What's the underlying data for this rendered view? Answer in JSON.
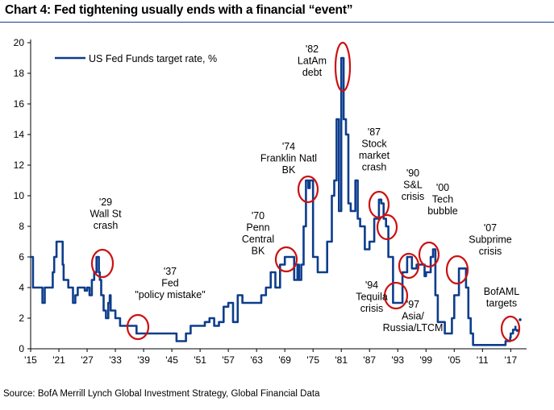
{
  "title": "Chart 4: Fed tightening usually ends with a financial “event”",
  "source": "Source: BofA Merrill Lynch Global Investment Strategy, Global Financial Data",
  "chart_data": {
    "type": "line",
    "title": "Chart 4: Fed tightening usually ends with a financial “event”",
    "xlabel": "",
    "ylabel": "",
    "xlim": [
      1915,
      2019
    ],
    "ylim": [
      0,
      20
    ],
    "yticks": [
      0,
      2,
      4,
      6,
      8,
      10,
      12,
      14,
      16,
      18,
      20
    ],
    "xtick_labels": [
      "'15",
      "'21",
      "'27",
      "'33",
      "'39",
      "'45",
      "'51",
      "'57",
      "'63",
      "'69",
      "'75",
      "'81",
      "'87",
      "'93",
      "'99",
      "'05",
      "'11",
      "'17"
    ],
    "grid": false,
    "legend": "top-left",
    "colors": {
      "line": "#0d3d8c",
      "circle": "#cc1111"
    },
    "series": [
      {
        "name": "US Fed Funds target rate, %",
        "x": [
          1915,
          1915.5,
          1916,
          1917,
          1917.5,
          1918,
          1919,
          1919.7,
          1920,
          1920.5,
          1921.2,
          1921.8,
          1922,
          1923,
          1924,
          1924.5,
          1925,
          1926,
          1926.5,
          1927,
          1927.5,
          1928,
          1928.5,
          1929,
          1929.5,
          1929.7,
          1930,
          1930.5,
          1931,
          1931.5,
          1931.8,
          1932,
          1932.5,
          1933,
          1933.5,
          1934,
          1935,
          1937,
          1937.5,
          1938,
          1940,
          1942,
          1945,
          1946,
          1947,
          1948,
          1949,
          1950,
          1952,
          1953,
          1954,
          1955,
          1956,
          1957,
          1958,
          1959,
          1960,
          1961,
          1963,
          1964,
          1965,
          1966,
          1967,
          1968,
          1969,
          1970,
          1971,
          1971.7,
          1972,
          1972.5,
          1973,
          1973.5,
          1974,
          1974.3,
          1975,
          1976,
          1977,
          1978,
          1979,
          1979.5,
          1980,
          1980.5,
          1981,
          1981.5,
          1982,
          1982.5,
          1983,
          1984,
          1984.5,
          1985,
          1986,
          1987,
          1988,
          1989,
          1989.5,
          1990,
          1990.5,
          1991,
          1992,
          1993,
          1994,
          1995,
          1996,
          1997,
          1998,
          1998.7,
          1999,
          2000,
          2000.5,
          2001,
          2001.5,
          2002,
          2003,
          2004,
          2004.5,
          2005,
          2006,
          2007,
          2007.5,
          2008,
          2008.5,
          2009,
          2012,
          2015,
          2015.9,
          2016,
          2016.9,
          2017,
          2017.5,
          2018
        ],
        "y": [
          6.0,
          4.0,
          4.0,
          4.0,
          3.0,
          4.0,
          4.0,
          5.0,
          6.0,
          7.0,
          7.0,
          5.5,
          4.5,
          4.0,
          3.0,
          3.5,
          4.0,
          4.0,
          3.8,
          4.0,
          3.5,
          4.5,
          5.0,
          6.0,
          5.0,
          4.5,
          3.5,
          2.5,
          2.0,
          3.0,
          3.5,
          2.5,
          2.5,
          2.0,
          2.0,
          1.5,
          1.5,
          1.5,
          1.0,
          1.0,
          1.0,
          1.0,
          1.0,
          0.5,
          0.5,
          1.0,
          1.5,
          1.5,
          1.75,
          2.0,
          1.5,
          1.75,
          2.75,
          3.0,
          1.75,
          3.5,
          3.0,
          3.0,
          3.0,
          3.5,
          4.0,
          5.0,
          4.0,
          5.5,
          6.0,
          6.0,
          4.5,
          5.5,
          4.5,
          5.5,
          8.0,
          11.0,
          10.5,
          11.0,
          6.0,
          5.0,
          5.0,
          7.0,
          10.0,
          11.0,
          15.0,
          9.0,
          19.0,
          15.0,
          14.0,
          9.5,
          9.0,
          11.0,
          8.5,
          8.0,
          6.5,
          7.0,
          8.5,
          9.75,
          9.5,
          8.5,
          8.0,
          6.0,
          3.0,
          3.0,
          5.0,
          6.0,
          5.25,
          5.5,
          5.5,
          4.75,
          5.0,
          6.0,
          6.5,
          3.5,
          1.75,
          1.75,
          1.0,
          1.0,
          2.0,
          3.5,
          5.25,
          5.25,
          4.0,
          2.0,
          1.0,
          0.25,
          0.25,
          0.25,
          0.5,
          0.5,
          0.75,
          1.0,
          1.25,
          1.5
        ]
      },
      {
        "name": "BofAML targets",
        "x": [
          2018.4,
          2019
        ],
        "y": [
          1.2,
          1.9
        ]
      }
    ],
    "annotations": [
      {
        "text": [
          "'29",
          "Wall St",
          "crash"
        ],
        "x": 1929.5,
        "y": 5.8
      },
      {
        "text": [
          "'37",
          "Fed",
          "\"policy mistake\""
        ],
        "x": 1937.3,
        "y": 1.5
      },
      {
        "text": [
          "'70",
          "Penn",
          "Central",
          "BK"
        ],
        "x": 1969.8,
        "y": 5.9
      },
      {
        "text": [
          "'74",
          "Franklin Natl",
          "BK"
        ],
        "x": 1974.3,
        "y": 10.6
      },
      {
        "text": [
          "'82",
          "LatAm",
          "debt"
        ],
        "x": 1981.3,
        "y": 18.3
      },
      {
        "text": [
          "'87",
          "Stock",
          "market",
          "crash"
        ],
        "x": 1989.3,
        "y": 9.5
      },
      {
        "text": [
          "'90",
          "S&L",
          "crisis"
        ],
        "x": 1990.3,
        "y": 8.2
      },
      {
        "text": [
          "'94",
          "Tequila",
          "crisis"
        ],
        "x": 1993.5,
        "y": 3.5
      },
      {
        "text": [
          "'97",
          "Asia/",
          "Russia/LTCM"
        ],
        "x": 1996.5,
        "y": 5.5
      },
      {
        "text": [
          "'00",
          "Tech",
          "bubble"
        ],
        "x": 2000.3,
        "y": 6.2
      },
      {
        "text": [
          "'07",
          "Subprime",
          "crisis"
        ],
        "x": 2006.8,
        "y": 5.3
      },
      {
        "text": [
          "BofAML",
          "targets"
        ],
        "x": 2018.5,
        "y": 1.3
      }
    ]
  }
}
